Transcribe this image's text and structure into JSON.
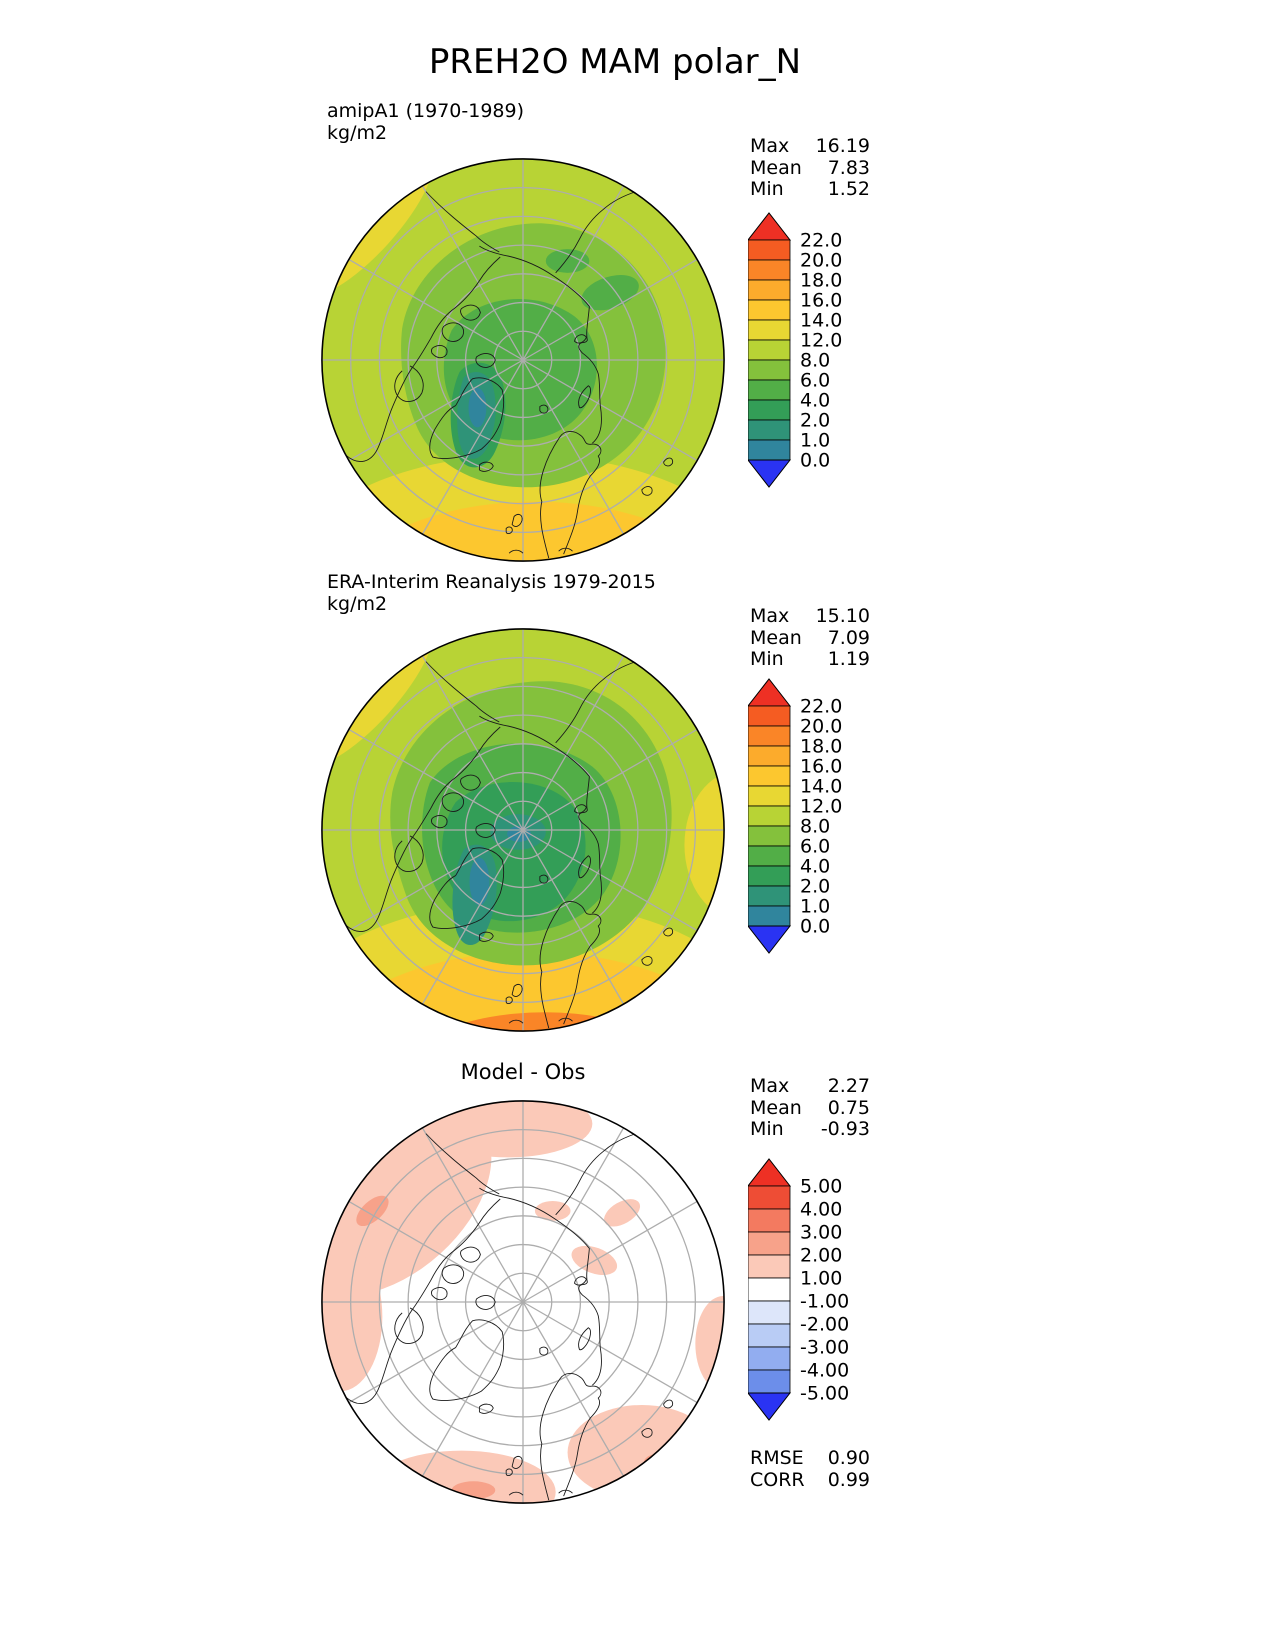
{
  "title": "PREH2O MAM polar_N",
  "panels": [
    {
      "label": "amipA1 (1970-1989)",
      "units": "kg/m2",
      "stats": {
        "max_label": "Max",
        "max": "16.19",
        "mean_label": "Mean",
        "mean": "7.83",
        "min_label": "Min",
        "min": "1.52"
      }
    },
    {
      "label": "ERA-Interim Reanalysis 1979-2015",
      "units": "kg/m2",
      "stats": {
        "max_label": "Max",
        "max": "15.10",
        "mean_label": "Mean",
        "mean": "7.09",
        "min_label": "Min",
        "min": "1.19"
      }
    },
    {
      "label": "Model - Obs",
      "stats": {
        "max_label": "Max",
        "max": "2.27",
        "mean_label": "Mean",
        "mean": "0.75",
        "min_label": "Min",
        "min": "-0.93"
      },
      "extra": {
        "rmse_label": "RMSE",
        "rmse": "0.90",
        "corr_label": "CORR",
        "corr": "0.99"
      }
    }
  ],
  "chart_data": [
    {
      "type": "heatmap",
      "projection": "north polar stereographic",
      "variable": "PREH2O",
      "season": "MAM",
      "region": "polar_N",
      "title": "amipA1 (1970-1989)",
      "units": "kg/m2",
      "stats": {
        "max": 16.19,
        "mean": 7.83,
        "min": 1.52
      },
      "colorbar": {
        "orientation": "vertical",
        "tick_labels": [
          "22.0",
          "20.0",
          "18.0",
          "16.0",
          "14.0",
          "12.0",
          "8.0",
          "6.0",
          "4.0",
          "2.0",
          "1.0",
          "0.0"
        ],
        "levels": [
          22,
          20,
          18,
          16,
          14,
          12,
          8,
          6,
          4,
          2,
          1,
          0
        ],
        "colors": [
          "#f55c22",
          "#fa8527",
          "#fcab2c",
          "#fcc72f",
          "#e8d733",
          "#b8d335",
          "#84c13c",
          "#52ae47",
          "#339e57",
          "#2f9378",
          "#30859d"
        ],
        "above_color": "#ee3024",
        "below_color": "#2a33f3"
      },
      "map_palette": {
        "base": "#b8d335",
        "band_12_14": "#e8d733",
        "band_14_16": "#fcc72f",
        "band_16_18": "#fa8527",
        "band_6_8": "#84c13c",
        "band_4_6": "#52ae47",
        "band_2_4": "#339e57",
        "band_1_2": "#2f9378",
        "band_0_1": "#30859d"
      }
    },
    {
      "type": "heatmap",
      "projection": "north polar stereographic",
      "variable": "PREH2O",
      "season": "MAM",
      "region": "polar_N",
      "title": "ERA-Interim Reanalysis 1979-2015",
      "units": "kg/m2",
      "stats": {
        "max": 15.1,
        "mean": 7.09,
        "min": 1.19
      },
      "colorbar": {
        "orientation": "vertical",
        "tick_labels": [
          "22.0",
          "20.0",
          "18.0",
          "16.0",
          "14.0",
          "12.0",
          "8.0",
          "6.0",
          "4.0",
          "2.0",
          "1.0",
          "0.0"
        ],
        "levels": [
          22,
          20,
          18,
          16,
          14,
          12,
          8,
          6,
          4,
          2,
          1,
          0
        ],
        "colors": [
          "#f55c22",
          "#fa8527",
          "#fcab2c",
          "#fcc72f",
          "#e8d733",
          "#b8d335",
          "#84c13c",
          "#52ae47",
          "#339e57",
          "#2f9378",
          "#30859d"
        ],
        "above_color": "#ee3024",
        "below_color": "#2a33f3"
      },
      "map_palette": {
        "base": "#b8d335",
        "band_12_14": "#e8d733",
        "band_14_16": "#fcc72f",
        "band_16_18": "#fa8527",
        "band_6_8": "#84c13c",
        "band_4_6": "#52ae47",
        "band_2_4": "#339e57",
        "band_1_2": "#2f9378",
        "band_0_1": "#30859d"
      }
    },
    {
      "type": "heatmap",
      "projection": "north polar stereographic",
      "variable": "PREH2O difference",
      "season": "MAM",
      "region": "polar_N",
      "title": "Model - Obs",
      "stats": {
        "max": 2.27,
        "mean": 0.75,
        "min": -0.93,
        "rmse": 0.9,
        "corr": 0.99
      },
      "colorbar": {
        "orientation": "vertical",
        "tick_labels": [
          "5.00",
          "4.00",
          "3.00",
          "2.00",
          "1.00",
          "-1.00",
          "-2.00",
          "-3.00",
          "-4.00",
          "-5.00"
        ],
        "levels": [
          5,
          4,
          3,
          2,
          1,
          -1,
          -2,
          -3,
          -4,
          -5
        ],
        "colors": [
          "#ee4d35",
          "#f37a60",
          "#f7a28a",
          "#fbc9b8",
          "#ffffff",
          "#dde6fa",
          "#b9ccf5",
          "#92adf0",
          "#6c8eea"
        ],
        "above_color": "#ee3024",
        "below_color": "#2a33f3"
      },
      "map_palette": {
        "base": "#ffffff",
        "band_1_2": "#fbc9b8",
        "band_2_3": "#f7a28a"
      }
    }
  ]
}
